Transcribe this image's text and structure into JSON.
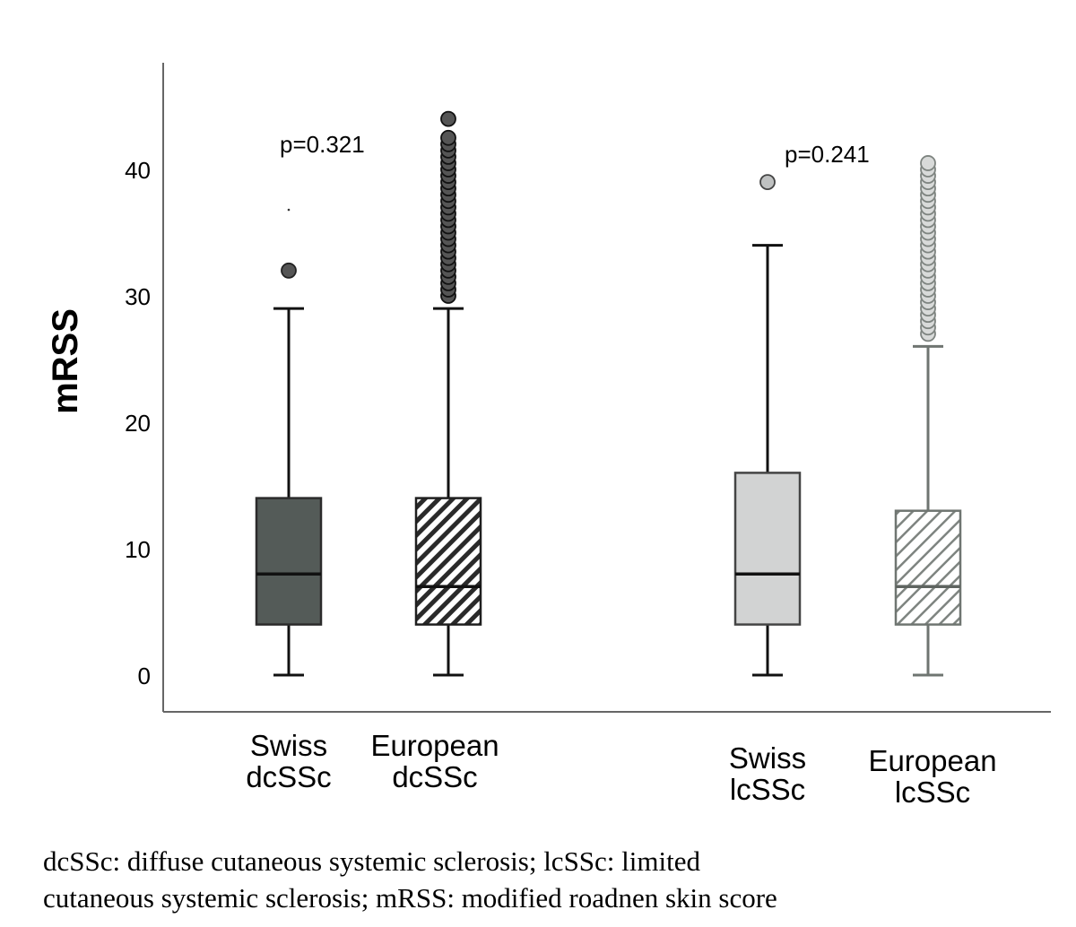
{
  "chart_data": {
    "type": "boxplot",
    "ylabel": "mRSS",
    "ylim": [
      -2.5,
      49
    ],
    "yticks": [
      0,
      10,
      20,
      30,
      40
    ],
    "groups": [
      {
        "label_lines": [
          "Swiss",
          "dcSSc"
        ],
        "min": 0,
        "q1": 4,
        "median": 8,
        "q3": 14,
        "max": 29,
        "outliers": [
          32
        ],
        "style": "solid-dark"
      },
      {
        "label_lines": [
          "European",
          "dcSSc"
        ],
        "min": 0,
        "q1": 4,
        "median": 7,
        "q3": 14,
        "max": 29,
        "outliers": [
          30,
          30.5,
          31,
          31.5,
          32,
          32.5,
          33,
          33.5,
          34,
          34.5,
          35,
          35.5,
          36,
          36.5,
          37,
          37.5,
          38,
          38.5,
          39,
          39.5,
          40,
          40.5,
          41,
          41.5,
          42,
          42.5,
          44
        ],
        "style": "hatch-dark"
      },
      {
        "label_lines": [
          "Swiss",
          "lcSSc"
        ],
        "min": 0,
        "q1": 4,
        "median": 8,
        "q3": 16,
        "max": 34,
        "outliers": [
          39
        ],
        "style": "solid-light"
      },
      {
        "label_lines": [
          "European",
          "lcSSc"
        ],
        "min": 0,
        "q1": 4,
        "median": 7,
        "q3": 13,
        "max": 26,
        "outliers": [
          27,
          27.5,
          28,
          28.5,
          29,
          29.5,
          30,
          30.5,
          31,
          31.5,
          32,
          32.5,
          33,
          33.5,
          34,
          34.5,
          35,
          35.5,
          36,
          36.5,
          37,
          37.5,
          38,
          38.5,
          39,
          39.5,
          40,
          40.5
        ],
        "style": "hatch-light"
      }
    ],
    "annotations": [
      {
        "text": "p=0.321",
        "between": "dcSSc"
      },
      {
        "text": "p=0.241",
        "between": "lcSSc"
      }
    ]
  },
  "caption": {
    "line1": "dcSSc: diffuse cutaneous systemic sclerosis; lcSSc: limited",
    "line2": "cutaneous systemic sclerosis; mRSS: modified roadnen skin score"
  }
}
